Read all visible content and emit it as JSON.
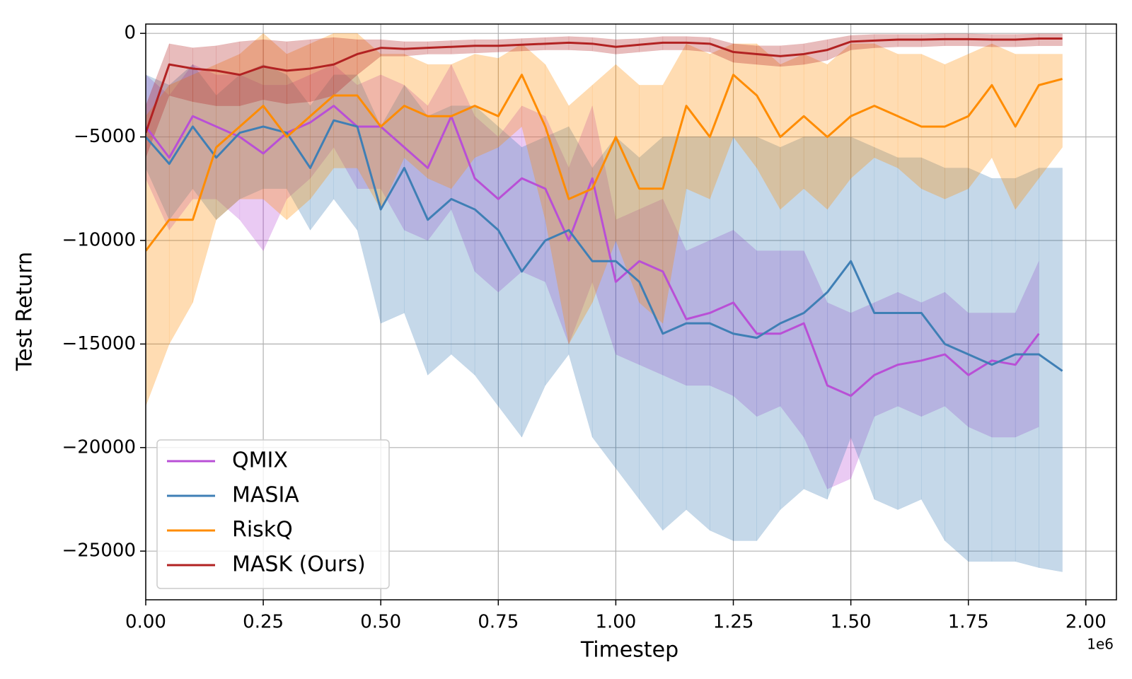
{
  "chart_data": {
    "type": "line",
    "xlabel": "Timestep",
    "ylabel": "Test Return",
    "x_offset_label": "1e6",
    "xlim": [
      0,
      2.065
    ],
    "ylim": [
      -27350,
      450
    ],
    "xticks": [
      {
        "value": 0,
        "label": "0.00"
      },
      {
        "value": 0.25,
        "label": "0.25"
      },
      {
        "value": 0.5,
        "label": "0.50"
      },
      {
        "value": 0.75,
        "label": "0.75"
      },
      {
        "value": 1,
        "label": "1.00"
      },
      {
        "value": 1.25,
        "label": "1.25"
      },
      {
        "value": 1.5,
        "label": "1.50"
      },
      {
        "value": 1.75,
        "label": "1.75"
      },
      {
        "value": 2,
        "label": "2.00"
      }
    ],
    "yticks": [
      0,
      {
        "value": -5000,
        "label": "−5000"
      },
      {
        "value": -10000,
        "label": "−10000"
      },
      {
        "value": -15000,
        "label": "−15000"
      },
      {
        "value": -20000,
        "label": "−20000"
      },
      {
        "value": -25000,
        "label": "−25000"
      }
    ],
    "grid": true,
    "legend": "lower left",
    "x": [
      0,
      0.05,
      0.1,
      0.15,
      0.2,
      0.25,
      0.3,
      0.35,
      0.4,
      0.45,
      0.5,
      0.55,
      0.6,
      0.65,
      0.7,
      0.75,
      0.8,
      0.85,
      0.9,
      0.95,
      1,
      1.05,
      1.1,
      1.15,
      1.2,
      1.25,
      1.3,
      1.35,
      1.4,
      1.45,
      1.5,
      1.55,
      1.6,
      1.65,
      1.7,
      1.75,
      1.8,
      1.85,
      1.9,
      1.95
    ],
    "series": [
      {
        "name": "QMIX",
        "color": "#b94fd6",
        "values": [
          -4500,
          -6000,
          -4000,
          -4500,
          -5000,
          -5800,
          -4800,
          -4300,
          -3500,
          -4500,
          -4500,
          -5500,
          -6500,
          -4000,
          -7000,
          -8000,
          -7000,
          -7500,
          -10000,
          -7000,
          -12000,
          -11000,
          -11500,
          -13800,
          -13500,
          -13000,
          -14500,
          -14500,
          -14000,
          -17000,
          -17500,
          -16500,
          -16000,
          -15800,
          -15500,
          -16500,
          -15800,
          -16000,
          -14500,
          null
        ],
        "lower": [
          -7000,
          -9500,
          -8000,
          -8000,
          -9000,
          -10500,
          -8000,
          -7000,
          -5500,
          -7500,
          -7500,
          -9500,
          -10000,
          -8500,
          -11500,
          -12500,
          -11500,
          -12000,
          -15000,
          -12000,
          -15500,
          -16000,
          -16500,
          -17000,
          -17000,
          -17500,
          -18500,
          -18000,
          -19500,
          -22000,
          -21500,
          -18500,
          -18000,
          -18500,
          -18000,
          -19000,
          -19500,
          -19500,
          -19000,
          null
        ],
        "upper": [
          -2000,
          -3000,
          -1500,
          -2000,
          -2000,
          -2500,
          -2500,
          -2000,
          -1500,
          -2500,
          -2000,
          -2500,
          -3500,
          -1500,
          -4000,
          -5000,
          -3500,
          -4000,
          -6500,
          -3500,
          -9000,
          -8500,
          -8000,
          -10500,
          -10000,
          -9500,
          -10500,
          -10500,
          -10500,
          -13000,
          -13500,
          -13000,
          -12500,
          -13000,
          -12500,
          -13500,
          -13500,
          -13500,
          -11000,
          null
        ]
      },
      {
        "name": "MASIA",
        "color": "#3f7fb5",
        "values": [
          -5000,
          -6300,
          -4500,
          -6000,
          -4800,
          -4500,
          -4800,
          -6500,
          -4200,
          -4500,
          -8500,
          -6500,
          -9000,
          -8000,
          -8500,
          -9500,
          -11500,
          -10000,
          -9500,
          -11000,
          -11000,
          -12000,
          -14500,
          -14000,
          -14000,
          -14500,
          -14700,
          -14000,
          -13500,
          -12500,
          -11000,
          -13500,
          -13500,
          -13500,
          -15000,
          -15500,
          -16000,
          -15500,
          -15500,
          -16300
        ],
        "lower": [
          -6500,
          -9000,
          -7500,
          -9000,
          -8000,
          -7500,
          -7500,
          -9500,
          -8000,
          -9500,
          -14000,
          -13500,
          -16500,
          -15500,
          -16500,
          -18000,
          -19500,
          -17000,
          -15500,
          -19500,
          -21000,
          -22500,
          -24000,
          -23000,
          -24000,
          -24500,
          -24500,
          -23000,
          -22000,
          -22500,
          -19500,
          -22500,
          -23000,
          -22500,
          -24500,
          -25500,
          -25500,
          -25500,
          -25800,
          -26000
        ],
        "upper": [
          -2000,
          -2500,
          -1500,
          -3000,
          -2000,
          -1500,
          -2000,
          -3500,
          -2000,
          -2000,
          -4500,
          -2500,
          -4000,
          -3500,
          -3500,
          -4500,
          -5500,
          -5000,
          -4500,
          -6500,
          -5000,
          -6000,
          -5000,
          -5000,
          -5000,
          -5000,
          -5000,
          -5500,
          -5000,
          -5000,
          -5000,
          -5500,
          -6000,
          -6000,
          -6500,
          -6500,
          -7000,
          -7000,
          -6500,
          -6500
        ]
      },
      {
        "name": "RiskQ",
        "color": "#ff8c00",
        "values": [
          -10500,
          -9000,
          -9000,
          -5500,
          -4500,
          -3500,
          -5000,
          -4000,
          -3000,
          -3000,
          -4500,
          -3500,
          -4000,
          -4000,
          -3500,
          -4000,
          -2000,
          -4500,
          -8000,
          -7500,
          -5000,
          -7500,
          -7500,
          -3500,
          -5000,
          -2000,
          -3000,
          -5000,
          -4000,
          -5000,
          -4000,
          -3500,
          -4000,
          -4500,
          -4500,
          -4000,
          -2500,
          -4500,
          -2500,
          -2200
        ],
        "lower": [
          -18000,
          -15000,
          -13000,
          -9000,
          -8000,
          -8000,
          -9000,
          -8000,
          -6500,
          -6500,
          -8500,
          -6000,
          -7000,
          -7500,
          -6000,
          -5500,
          -4500,
          -9000,
          -15000,
          -13000,
          -10000,
          -13000,
          -14000,
          -7500,
          -8000,
          -5000,
          -6500,
          -8500,
          -7500,
          -8500,
          -7000,
          -6000,
          -6500,
          -7500,
          -8000,
          -7500,
          -6000,
          -8500,
          -7000,
          -5500
        ],
        "upper": [
          -4000,
          -2500,
          -2000,
          -1500,
          -1000,
          0,
          -1000,
          -500,
          0,
          0,
          -1000,
          -1000,
          -1500,
          -1500,
          -1000,
          -1200,
          -500,
          -1500,
          -3500,
          -2500,
          -1500,
          -2500,
          -2500,
          -500,
          -1000,
          -500,
          -500,
          -1500,
          -1000,
          -1500,
          -500,
          -500,
          -1000,
          -1000,
          -1500,
          -1000,
          -500,
          -1000,
          -1000,
          -1000
        ]
      },
      {
        "name": "MASK (Ours)",
        "color": "#b22222",
        "values": [
          -4800,
          -1500,
          -1700,
          -1800,
          -2000,
          -1600,
          -1800,
          -1700,
          -1500,
          -1000,
          -700,
          -750,
          -700,
          -650,
          -600,
          -600,
          -550,
          -500,
          -450,
          -500,
          -650,
          -550,
          -450,
          -450,
          -500,
          -900,
          -1000,
          -1100,
          -1000,
          -800,
          -400,
          -350,
          -300,
          -300,
          -280,
          -280,
          -300,
          -300,
          -250,
          -250
        ],
        "lower": [
          -6000,
          -3000,
          -3300,
          -3500,
          -3500,
          -3200,
          -3400,
          -3300,
          -3000,
          -2000,
          -1100,
          -1100,
          -1000,
          -1000,
          -950,
          -900,
          -850,
          -800,
          -800,
          -850,
          -1000,
          -900,
          -800,
          -800,
          -900,
          -1400,
          -1500,
          -1600,
          -1500,
          -1300,
          -800,
          -700,
          -650,
          -650,
          -600,
          -600,
          -650,
          -650,
          -600,
          -600
        ],
        "upper": [
          -3500,
          -500,
          -700,
          -600,
          -400,
          -300,
          -400,
          -300,
          -200,
          -300,
          -300,
          -400,
          -400,
          -350,
          -300,
          -300,
          -250,
          -200,
          -150,
          -200,
          -300,
          -250,
          -150,
          -150,
          -200,
          -500,
          -600,
          -600,
          -500,
          -300,
          -100,
          -50,
          -50,
          -50,
          -20,
          -20,
          -50,
          -50,
          -20,
          -20
        ]
      }
    ]
  }
}
